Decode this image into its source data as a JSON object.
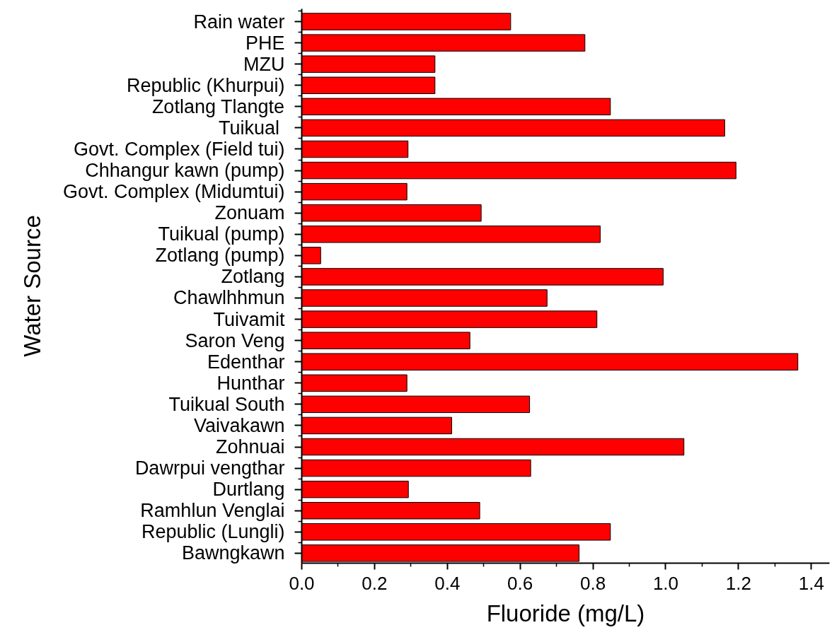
{
  "chart_data": {
    "type": "bar",
    "orientation": "horizontal",
    "categories": [
      "Rain water",
      "PHE",
      "MZU",
      "Republic (Khurpui)",
      "Zotlang Tlangte",
      "Tuikual ",
      "Govt. Complex (Field tui)",
      "Chhangur kawn (pump)",
      "Govt. Complex (Midumtui)",
      "Zonuam",
      "Tuikual (pump)",
      "Zotlang (pump)",
      "Zotlang",
      "Chawlhhmun",
      "Tuivamit",
      "Saron Veng",
      "Edenthar",
      "Hunthar",
      "Tuikual South",
      "Vaivakawn",
      "Zohnuai",
      "Dawrpui vengthar",
      "Durtlang",
      "Ramhlun Venglai",
      "Republic (Lungli)",
      "Bawngkawn"
    ],
    "values": [
      0.574,
      0.778,
      0.366,
      0.366,
      0.848,
      1.162,
      0.292,
      1.193,
      0.289,
      0.493,
      0.82,
      0.052,
      0.993,
      0.674,
      0.811,
      0.462,
      1.363,
      0.289,
      0.626,
      0.412,
      1.05,
      0.629,
      0.293,
      0.489,
      0.848,
      0.762
    ],
    "color": "#ff0000",
    "xlabel": "Fluoride (mg/L)",
    "ylabel": "Water Source",
    "xlim": [
      0,
      1.45
    ],
    "xticks": [
      {
        "value": 0,
        "label": "0.0"
      },
      {
        "value": 0.2,
        "label": "0.2"
      },
      {
        "value": 0.4,
        "label": "0.4"
      },
      {
        "value": 0.6,
        "label": "0.6"
      },
      {
        "value": 0.8,
        "label": "0.8"
      },
      {
        "value": 1.0,
        "label": "1.0"
      },
      {
        "value": 1.2,
        "label": "1.2"
      },
      {
        "value": 1.4,
        "label": "1.4"
      }
    ],
    "grid": false
  }
}
